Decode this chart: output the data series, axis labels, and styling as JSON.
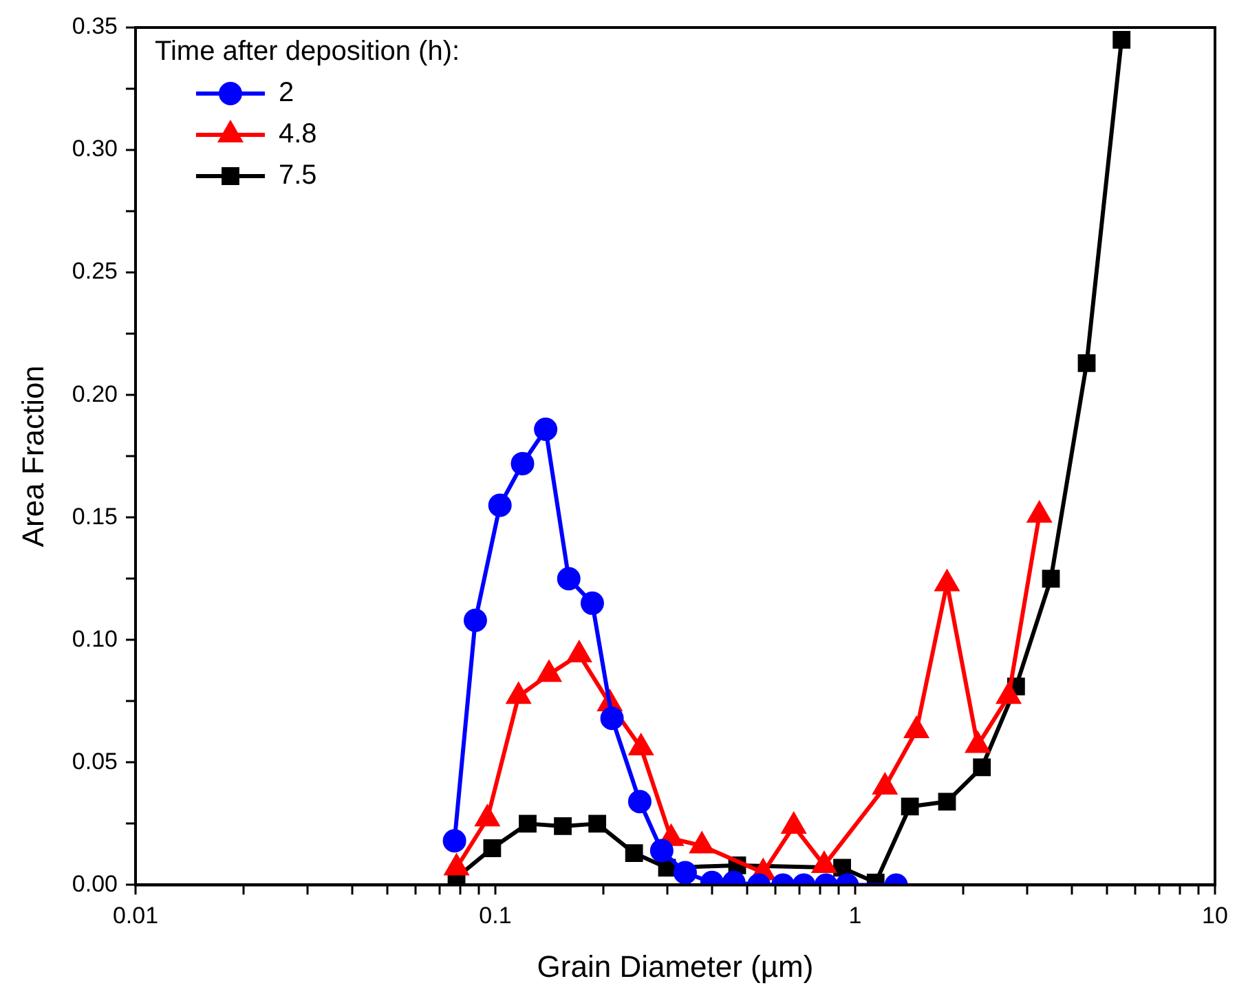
{
  "chart_data": {
    "type": "line",
    "xlabel": "Grain Diameter (µm)",
    "ylabel": "Area Fraction",
    "legend_title": "Time after deposition (h):",
    "legend": "top left",
    "log": "x",
    "grid": false,
    "xlim": [
      0.01,
      10
    ],
    "ylim": [
      0,
      0.35
    ],
    "xticks": [
      {
        "value": 0.01,
        "label": "0.01"
      },
      {
        "value": 0.02,
        "label": null
      },
      {
        "value": 0.03,
        "label": null
      },
      {
        "value": 0.04,
        "label": null
      },
      {
        "value": 0.05,
        "label": null
      },
      {
        "value": 0.06,
        "label": null
      },
      {
        "value": 0.07,
        "label": null
      },
      {
        "value": 0.08,
        "label": null
      },
      {
        "value": 0.09,
        "label": null
      },
      {
        "value": 0.1,
        "label": "0.1"
      },
      {
        "value": 0.2,
        "label": null
      },
      {
        "value": 0.3,
        "label": null
      },
      {
        "value": 0.4,
        "label": null
      },
      {
        "value": 0.5,
        "label": null
      },
      {
        "value": 0.6,
        "label": null
      },
      {
        "value": 0.7,
        "label": null
      },
      {
        "value": 0.8,
        "label": null
      },
      {
        "value": 0.9,
        "label": null
      },
      1,
      {
        "value": 2,
        "label": null
      },
      {
        "value": 3,
        "label": null
      },
      {
        "value": 4,
        "label": null
      },
      {
        "value": 5,
        "label": null
      },
      {
        "value": 6,
        "label": null
      },
      {
        "value": 7,
        "label": null
      },
      {
        "value": 8,
        "label": null
      },
      {
        "value": 9,
        "label": null
      },
      10
    ],
    "yticks": [
      {
        "value": 0,
        "label": "0.00"
      },
      {
        "value": 0.025,
        "label": null
      },
      {
        "value": 0.05,
        "label": "0.05"
      },
      {
        "value": 0.075,
        "label": null
      },
      {
        "value": 0.1,
        "label": "0.10"
      },
      {
        "value": 0.125,
        "label": null
      },
      {
        "value": 0.15,
        "label": "0.15"
      },
      {
        "value": 0.175,
        "label": null
      },
      {
        "value": 0.2,
        "label": "0.20"
      },
      {
        "value": 0.225,
        "label": null
      },
      {
        "value": 0.25,
        "label": "0.25"
      },
      {
        "value": 0.275,
        "label": null
      },
      {
        "value": 0.3,
        "label": "0.30"
      },
      {
        "value": 0.325,
        "label": null
      },
      {
        "value": 0.35,
        "label": "0.35"
      }
    ],
    "series": [
      {
        "name": "2",
        "color": "#0000ff",
        "marker": "circle",
        "x": [
          0.077,
          0.088,
          0.103,
          0.119,
          0.138,
          0.16,
          0.186,
          0.211,
          0.252,
          0.29,
          0.337,
          0.4,
          0.46,
          0.54,
          0.63,
          0.72,
          0.83,
          0.95,
          1.3
        ],
        "values": [
          0.018,
          0.108,
          0.155,
          0.172,
          0.186,
          0.125,
          0.115,
          0.068,
          0.034,
          0.014,
          0.005,
          0.001,
          0.001,
          0,
          0,
          0,
          0,
          0,
          0
        ]
      },
      {
        "name": "4.8",
        "color": "#ff0000",
        "marker": "triangle",
        "x": [
          0.078,
          0.095,
          0.116,
          0.141,
          0.171,
          0.208,
          0.254,
          0.308,
          0.375,
          0.456,
          0.555,
          0.675,
          0.82,
          1.0,
          1.21,
          1.48,
          1.8,
          2.19,
          2.67,
          3.25
        ],
        "values": [
          0.007,
          0.027,
          0.077,
          0.086,
          0.094,
          0.074,
          0.056,
          0.019,
          0.016,
          null,
          0.005,
          0.024,
          0.008,
          null,
          0.04,
          0.063,
          0.123,
          0.057,
          0.077,
          0.151
        ]
      },
      {
        "name": "7.5",
        "color": "#000000",
        "marker": "square",
        "x": [
          0.078,
          0.098,
          0.123,
          0.154,
          0.192,
          0.243,
          0.3,
          0.375,
          0.47,
          0.58,
          0.73,
          0.92,
          1.14,
          1.42,
          1.8,
          2.25,
          2.8,
          3.5,
          4.4,
          5.5
        ],
        "values": [
          0.003,
          0.015,
          0.025,
          0.024,
          0.025,
          0.013,
          0.007,
          null,
          0.008,
          null,
          null,
          0.007,
          0.001,
          0.032,
          0.034,
          0.048,
          0.081,
          0.125,
          0.213,
          0.345
        ]
      }
    ]
  }
}
